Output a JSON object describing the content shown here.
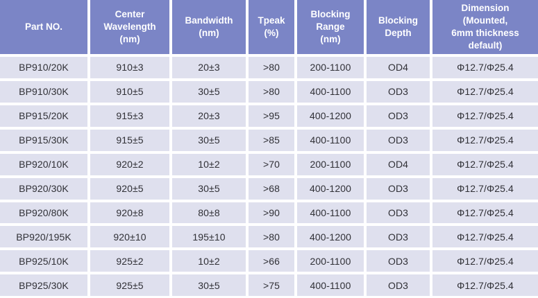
{
  "table": {
    "headers": [
      "Part NO.",
      "Center\nWavelength\n(nm)",
      "Bandwidth\n(nm)",
      "Tpeak\n(%)",
      "Blocking\nRange\n(nm)",
      "Blocking\nDepth",
      "Dimension\n(Mounted,\n6mm thickness\ndefault)"
    ],
    "column_ids": [
      "part-no",
      "center-wavelength",
      "bandwidth",
      "tpeak",
      "blocking-range",
      "blocking-depth",
      "dimension"
    ],
    "rows": [
      [
        "BP910/20K",
        "910±3",
        "20±3",
        ">80",
        "200-1100",
        "OD4",
        "Φ12.7/Φ25.4"
      ],
      [
        "BP910/30K",
        "910±5",
        "30±5",
        ">80",
        "400-1100",
        "OD3",
        "Φ12.7/Φ25.4"
      ],
      [
        "BP915/20K",
        "915±3",
        "20±3",
        ">95",
        "400-1200",
        "OD3",
        "Φ12.7/Φ25.4"
      ],
      [
        "BP915/30K",
        "915±5",
        "30±5",
        ">85",
        "400-1100",
        "OD3",
        "Φ12.7/Φ25.4"
      ],
      [
        "BP920/10K",
        "920±2",
        "10±2",
        ">70",
        "200-1100",
        "OD4",
        "Φ12.7/Φ25.4"
      ],
      [
        "BP920/30K",
        "920±5",
        "30±5",
        ">68",
        "400-1200",
        "OD3",
        "Φ12.7/Φ25.4"
      ],
      [
        "BP920/80K",
        "920±8",
        "80±8",
        ">90",
        "400-1100",
        "OD3",
        "Φ12.7/Φ25.4"
      ],
      [
        "BP920/195K",
        "920±10",
        "195±10",
        ">80",
        "400-1200",
        "OD3",
        "Φ12.7/Φ25.4"
      ],
      [
        "BP925/10K",
        "925±2",
        "10±2",
        ">66",
        "200-1100",
        "OD3",
        "Φ12.7/Φ25.4"
      ],
      [
        "BP925/30K",
        "925±5",
        "30±5",
        ">75",
        "400-1100",
        "OD3",
        "Φ12.7/Φ25.4"
      ]
    ]
  },
  "colors": {
    "header_bg": "#7B85C6",
    "header_text": "#FFFFFF",
    "row_bg": "#DFE0EE",
    "row_text": "#303036",
    "grid": "#FFFFFF"
  }
}
